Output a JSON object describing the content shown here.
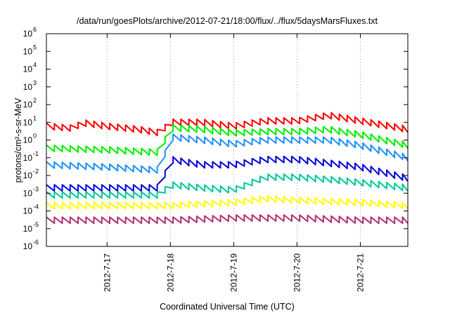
{
  "chart_data": {
    "type": "line",
    "title": "/data/run/goesPlots/archive/2012-07-21/18:00/flux/../flux/5daysMarsFluxes.txt",
    "xlabel": "Coordinated Universal Time (UTC)",
    "ylabel": "protons/cm²-s-sr-MeV",
    "y_scale": "log",
    "ylim_exponents": [
      -6,
      6
    ],
    "y_tick_labels": [
      {
        "base": "10",
        "exp": "-6"
      },
      {
        "base": "10",
        "exp": "-5"
      },
      {
        "base": "10",
        "exp": "-4"
      },
      {
        "base": "10",
        "exp": "-3"
      },
      {
        "base": "10",
        "exp": "-2"
      },
      {
        "base": "10",
        "exp": "-1"
      },
      {
        "base": "10",
        "exp": "0"
      },
      {
        "base": "10",
        "exp": "1"
      },
      {
        "base": "10",
        "exp": "2"
      },
      {
        "base": "10",
        "exp": "3"
      },
      {
        "base": "10",
        "exp": "4"
      },
      {
        "base": "10",
        "exp": "5"
      },
      {
        "base": "10",
        "exp": "6"
      }
    ],
    "x_range_days": [
      "2012-07-16 01:00",
      "2012-07-21 18:00"
    ],
    "x_ticks": [
      "2012-7-17",
      "2012-7-18",
      "2012-7-19",
      "2012-7-20",
      "2012-7-21"
    ],
    "grid": true,
    "series": [
      {
        "color": "#ff0000",
        "values": [
          {
            "t": "2012-07-16 01:00",
            "v": 6.0
          },
          {
            "t": "2012-07-16 12:00",
            "v": 4.5
          },
          {
            "t": "2012-07-16 14:00",
            "v": 10.0
          },
          {
            "t": "2012-07-17 00:00",
            "v": 6.0
          },
          {
            "t": "2012-07-17 12:00",
            "v": 4.0
          },
          {
            "t": "2012-07-17 20:00",
            "v": 2.5
          },
          {
            "t": "2012-07-18 00:00",
            "v": 10.0
          },
          {
            "t": "2012-07-18 12:00",
            "v": 10.0
          },
          {
            "t": "2012-07-19 00:00",
            "v": 6.0
          },
          {
            "t": "2012-07-19 12:00",
            "v": 12.0
          },
          {
            "t": "2012-07-20 00:00",
            "v": 12.0
          },
          {
            "t": "2012-07-20 12:00",
            "v": 25.0
          },
          {
            "t": "2012-07-21 00:00",
            "v": 12.0
          },
          {
            "t": "2012-07-21 18:00",
            "v": 4.0
          }
        ]
      },
      {
        "color": "#00ee00",
        "values": [
          {
            "t": "2012-07-16 01:00",
            "v": 0.35
          },
          {
            "t": "2012-07-17 00:00",
            "v": 0.28
          },
          {
            "t": "2012-07-17 20:00",
            "v": 0.2
          },
          {
            "t": "2012-07-18 00:00",
            "v": 5.0
          },
          {
            "t": "2012-07-18 12:00",
            "v": 4.0
          },
          {
            "t": "2012-07-19 00:00",
            "v": 2.5
          },
          {
            "t": "2012-07-19 12:00",
            "v": 3.0
          },
          {
            "t": "2012-07-20 00:00",
            "v": 3.0
          },
          {
            "t": "2012-07-20 12:00",
            "v": 4.0
          },
          {
            "t": "2012-07-21 00:00",
            "v": 2.0
          },
          {
            "t": "2012-07-21 18:00",
            "v": 0.5
          }
        ]
      },
      {
        "color": "#1e90ff",
        "values": [
          {
            "t": "2012-07-16 01:00",
            "v": 0.04
          },
          {
            "t": "2012-07-17 00:00",
            "v": 0.03
          },
          {
            "t": "2012-07-17 20:00",
            "v": 0.02
          },
          {
            "t": "2012-07-18 00:00",
            "v": 1.5
          },
          {
            "t": "2012-07-18 12:00",
            "v": 1.0
          },
          {
            "t": "2012-07-19 00:00",
            "v": 0.6
          },
          {
            "t": "2012-07-19 12:00",
            "v": 1.0
          },
          {
            "t": "2012-07-20 00:00",
            "v": 1.0
          },
          {
            "t": "2012-07-20 12:00",
            "v": 1.0
          },
          {
            "t": "2012-07-21 00:00",
            "v": 0.5
          },
          {
            "t": "2012-07-21 18:00",
            "v": 0.1
          }
        ]
      },
      {
        "color": "#0000dd",
        "values": [
          {
            "t": "2012-07-16 01:00",
            "v": 0.002
          },
          {
            "t": "2012-07-17 00:00",
            "v": 0.002
          },
          {
            "t": "2012-07-17 20:00",
            "v": 0.002
          },
          {
            "t": "2012-07-18 00:00",
            "v": 0.08
          },
          {
            "t": "2012-07-18 12:00",
            "v": 0.04
          },
          {
            "t": "2012-07-19 00:00",
            "v": 0.04
          },
          {
            "t": "2012-07-19 12:00",
            "v": 0.08
          },
          {
            "t": "2012-07-20 00:00",
            "v": 0.08
          },
          {
            "t": "2012-07-20 12:00",
            "v": 0.05
          },
          {
            "t": "2012-07-21 00:00",
            "v": 0.03
          },
          {
            "t": "2012-07-21 18:00",
            "v": 0.007
          }
        ]
      },
      {
        "color": "#00c896",
        "values": [
          {
            "t": "2012-07-16 01:00",
            "v": 0.0008
          },
          {
            "t": "2012-07-17 00:00",
            "v": 0.0008
          },
          {
            "t": "2012-07-17 20:00",
            "v": 0.0008
          },
          {
            "t": "2012-07-18 00:00",
            "v": 0.003
          },
          {
            "t": "2012-07-18 12:00",
            "v": 0.002
          },
          {
            "t": "2012-07-19 00:00",
            "v": 0.0015
          },
          {
            "t": "2012-07-19 12:00",
            "v": 0.008
          },
          {
            "t": "2012-07-20 00:00",
            "v": 0.008
          },
          {
            "t": "2012-07-20 12:00",
            "v": 0.006
          },
          {
            "t": "2012-07-21 00:00",
            "v": 0.004
          },
          {
            "t": "2012-07-21 18:00",
            "v": 0.002
          }
        ]
      },
      {
        "color": "#ffff00",
        "values": [
          {
            "t": "2012-07-16 01:00",
            "v": 0.0002
          },
          {
            "t": "2012-07-17 00:00",
            "v": 0.0002
          },
          {
            "t": "2012-07-18 00:00",
            "v": 0.0002
          },
          {
            "t": "2012-07-19 00:00",
            "v": 0.0003
          },
          {
            "t": "2012-07-19 12:00",
            "v": 0.0005
          },
          {
            "t": "2012-07-20 00:00",
            "v": 0.0004
          },
          {
            "t": "2012-07-21 00:00",
            "v": 0.0003
          },
          {
            "t": "2012-07-21 18:00",
            "v": 0.0002
          }
        ]
      },
      {
        "color": "#b03070",
        "values": [
          {
            "t": "2012-07-16 01:00",
            "v": 3e-05
          },
          {
            "t": "2012-07-17 00:00",
            "v": 3e-05
          },
          {
            "t": "2012-07-18 00:00",
            "v": 3e-05
          },
          {
            "t": "2012-07-19 00:00",
            "v": 4e-05
          },
          {
            "t": "2012-07-20 00:00",
            "v": 4e-05
          },
          {
            "t": "2012-07-21 00:00",
            "v": 3e-05
          },
          {
            "t": "2012-07-21 18:00",
            "v": 3e-05
          }
        ]
      }
    ]
  }
}
